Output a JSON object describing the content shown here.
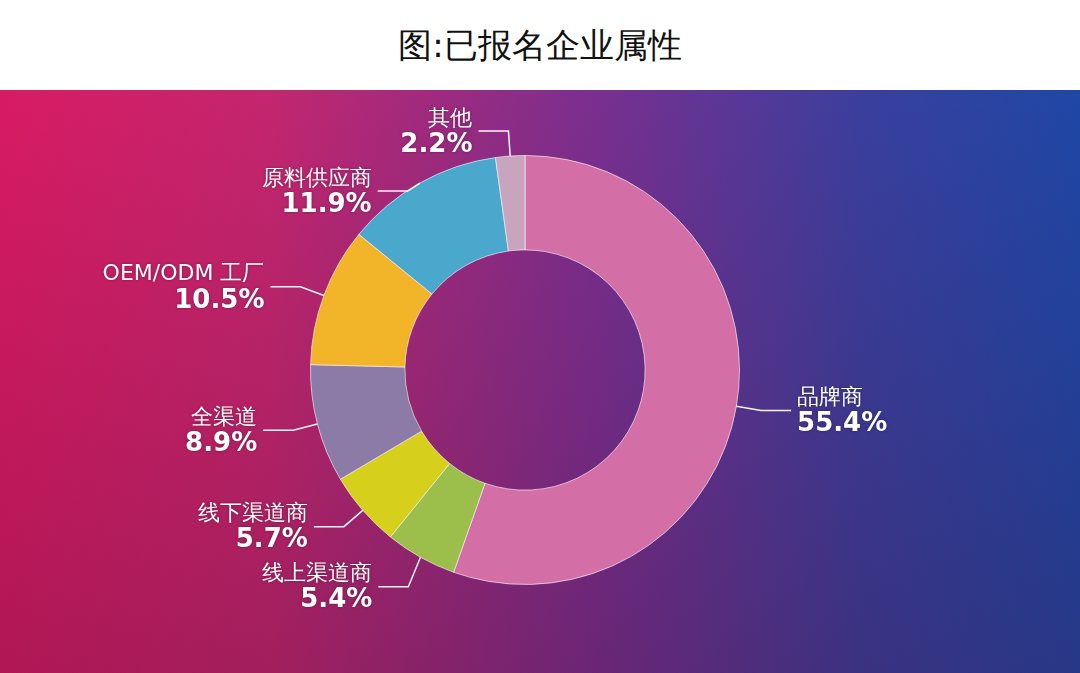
{
  "chart_data": {
    "type": "doughnut",
    "title": "图:已报名企业属性",
    "categories": [
      "品牌商",
      "线上渠道商",
      "线下渠道商",
      "全渠道",
      "OEM/ODM 工厂",
      "原料供应商",
      "其他"
    ],
    "values": [
      55.4,
      5.4,
      5.7,
      8.9,
      10.5,
      11.9,
      2.2
    ],
    "value_labels": [
      "55.4%",
      "5.4%",
      "5.7%",
      "8.9%",
      "10.5%",
      "11.9%",
      "2.2%"
    ],
    "colors": [
      "#d36fa6",
      "#9bbf4a",
      "#d6d01c",
      "#8c7ba6",
      "#f2b52a",
      "#4aa8cc",
      "#c9a4bf"
    ],
    "data_labels": true
  }
}
